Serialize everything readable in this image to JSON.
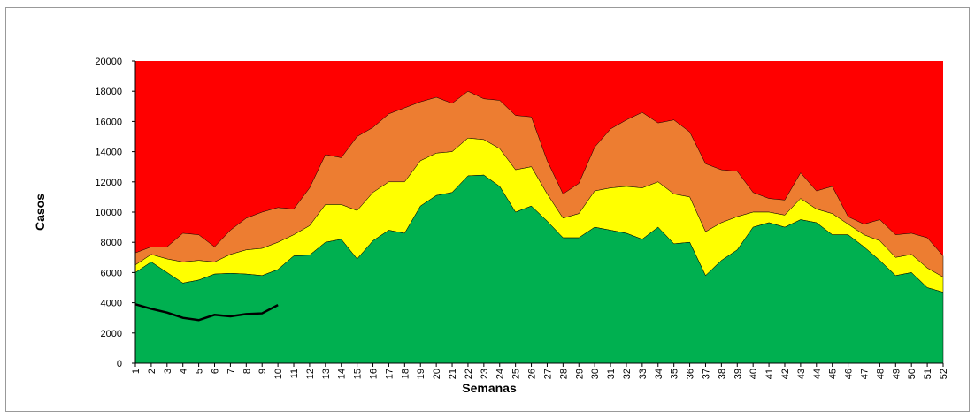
{
  "chart_data": {
    "type": "area",
    "x_label": "Semanas",
    "y_label": "Casos",
    "categories": [
      "1",
      "2",
      "3",
      "4",
      "5",
      "6",
      "7",
      "8",
      "9",
      "10",
      "11",
      "12",
      "13",
      "14",
      "15",
      "16",
      "17",
      "18",
      "19",
      "20",
      "21",
      "22",
      "23",
      "24",
      "25",
      "26",
      "27",
      "28",
      "29",
      "30",
      "31",
      "32",
      "33",
      "34",
      "35",
      "36",
      "37",
      "38",
      "39",
      "40",
      "41",
      "42",
      "43",
      "44",
      "45",
      "46",
      "47",
      "48",
      "49",
      "50",
      "51",
      "52"
    ],
    "background": "#ff0000",
    "series": [
      {
        "type": "area",
        "color": "#ed7d31",
        "values": [
          7300,
          7700,
          7700,
          8600,
          8500,
          7700,
          8800,
          9600,
          10000,
          10300,
          10200,
          11600,
          13800,
          13600,
          15000,
          15600,
          16500,
          16900,
          17300,
          17600,
          17200,
          18000,
          17500,
          17400,
          16400,
          16300,
          13400,
          11200,
          11900,
          14300,
          15500,
          16100,
          16600,
          15900,
          16100,
          15300,
          13200,
          12800,
          12700,
          11300,
          10900,
          10800,
          12600,
          11400,
          11700,
          9700,
          9200,
          9500,
          8500,
          8600,
          8300,
          7100
        ]
      },
      {
        "type": "area",
        "color": "#ffff00",
        "values": [
          6500,
          7200,
          6900,
          6700,
          6800,
          6700,
          7200,
          7500,
          7600,
          8000,
          8500,
          9100,
          10500,
          10500,
          10100,
          11300,
          12000,
          12000,
          13400,
          13900,
          14000,
          14900,
          14800,
          14200,
          12800,
          13000,
          11200,
          9600,
          9900,
          11400,
          11600,
          11700,
          11600,
          12000,
          11200,
          11000,
          8700,
          9300,
          9700,
          10000,
          10000,
          9800,
          10900,
          10200,
          9900,
          9200,
          8500,
          8100,
          7000,
          7200,
          6300,
          5700
        ]
      },
      {
        "type": "area",
        "color": "#00b050",
        "values": [
          6000,
          6700,
          6000,
          5300,
          5500,
          5900,
          5950,
          5900,
          5800,
          6200,
          7100,
          7150,
          8000,
          8200,
          6900,
          8100,
          8800,
          8600,
          10400,
          11100,
          11300,
          12400,
          12450,
          11700,
          10000,
          10400,
          9400,
          8300,
          8300,
          9000,
          8800,
          8600,
          8200,
          9000,
          7900,
          8000,
          5800,
          6800,
          7500,
          9000,
          9300,
          9000,
          9500,
          9300,
          8500,
          8500,
          7700,
          6800,
          5800,
          6000,
          5000,
          4700
        ]
      },
      {
        "type": "line",
        "color": "#000000",
        "values": [
          3900,
          3600,
          3350,
          3000,
          2850,
          3200,
          3100,
          3250,
          3300,
          3850,
          null,
          null,
          null,
          null,
          null,
          null,
          null,
          null,
          null,
          null,
          null,
          null,
          null,
          null,
          null,
          null,
          null,
          null,
          null,
          null,
          null,
          null,
          null,
          null,
          null,
          null,
          null,
          null,
          null,
          null,
          null,
          null,
          null,
          null,
          null,
          null,
          null,
          null,
          null,
          null,
          null,
          null
        ]
      }
    ],
    "ylim": [
      0,
      20000
    ],
    "yticks": [
      0,
      2000,
      4000,
      6000,
      8000,
      10000,
      12000,
      14000,
      16000,
      18000,
      20000
    ]
  }
}
